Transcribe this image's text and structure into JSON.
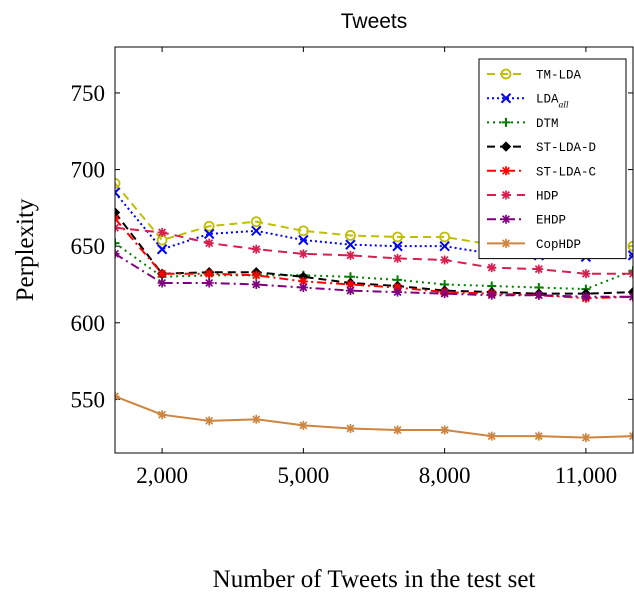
{
  "chart_data": {
    "type": "line",
    "title": "Tweets",
    "xlabel": "Number of Tweets in the test set",
    "ylabel": "Perplexity",
    "xlim": [
      1000,
      12000
    ],
    "ylim": [
      515,
      780
    ],
    "xticks": [
      2000,
      5000,
      8000,
      11000
    ],
    "xtick_labels": [
      "2,000",
      "5,000",
      "8,000",
      "11,000"
    ],
    "yticks": [
      550,
      600,
      650,
      700,
      750
    ],
    "ytick_labels": [
      "550",
      "600",
      "650",
      "700",
      "750"
    ],
    "grid": false,
    "legend_position": "top-right",
    "x": [
      1000,
      2000,
      3000,
      4000,
      5000,
      6000,
      7000,
      8000,
      9000,
      10000,
      11000,
      12000
    ],
    "series": [
      {
        "name": "TM-LDA",
        "color": "#bfbf00",
        "dash": "8,5",
        "marker": "circle",
        "values": [
          691,
          654,
          663,
          666,
          660,
          657,
          656,
          656,
          651,
          650,
          649,
          650
        ]
      },
      {
        "name": "LDA",
        "name_sub": "all",
        "color": "#0000ff",
        "dash": "2,3",
        "marker": "x",
        "values": [
          685,
          648,
          658,
          660,
          654,
          651,
          650,
          650,
          645,
          644,
          643,
          644
        ]
      },
      {
        "name": "DTM",
        "color": "#008000",
        "dash": "2,4",
        "marker": "plus",
        "values": [
          652,
          630,
          631,
          631,
          631,
          630,
          628,
          625,
          624,
          623,
          622,
          634
        ]
      },
      {
        "name": "ST-LDA-D",
        "color": "#000000",
        "dash": "8,5",
        "marker": "diamond",
        "values": [
          672,
          632,
          633,
          633,
          630,
          626,
          624,
          621,
          620,
          619,
          619,
          620
        ]
      },
      {
        "name": "ST-LDA-C",
        "color": "#ff0000",
        "dash": "9,4,2,4",
        "marker": "asterisk",
        "values": [
          668,
          632,
          632,
          631,
          627,
          625,
          623,
          620,
          619,
          618,
          616,
          617
        ]
      },
      {
        "name": "HDP",
        "color": "#d62050",
        "dash": "9,6",
        "marker": "asterisk",
        "values": [
          662,
          659,
          652,
          648,
          645,
          644,
          642,
          641,
          636,
          635,
          632,
          632
        ]
      },
      {
        "name": "EHDP",
        "color": "#800080",
        "dash": "9,4,2,4",
        "marker": "asterisk",
        "values": [
          645,
          626,
          626,
          625,
          623,
          621,
          620,
          619,
          618,
          618,
          617,
          617
        ]
      },
      {
        "name": "CopHDP",
        "color": "#cd853f",
        "dash": "",
        "marker": "asterisk",
        "values": [
          552,
          540,
          536,
          537,
          533,
          531,
          530,
          530,
          526,
          526,
          525,
          526
        ]
      }
    ]
  }
}
